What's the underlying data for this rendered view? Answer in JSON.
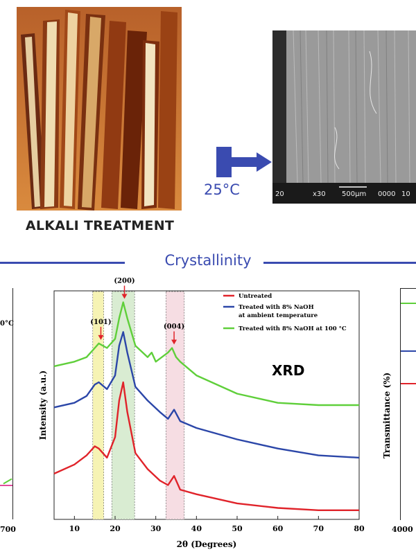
{
  "photo_caption": "ALKALI TREATMENT",
  "arrow_label": "25°C",
  "sem": {
    "scale_label": "500μm",
    "info_left": "20",
    "info_mag": "x30",
    "info_right": "0000",
    "info_far": "10"
  },
  "section_title": "Crystallinity",
  "left_panel": {
    "tick_label": "700",
    "partial_label": "0°C"
  },
  "right_panel": {
    "ylabel": "Transmittance (%)",
    "tick_label": "4000"
  },
  "colors": {
    "accent": "#3a4bb0",
    "untreated": "#e0232a",
    "ambient": "#2b46a8",
    "hot": "#5fcf3a"
  },
  "chart_data": {
    "type": "line",
    "title": "XRD",
    "xlabel": "2θ (Degrees)",
    "ylabel": "Intensity (a.u.)",
    "xlim": [
      5,
      80
    ],
    "x_ticks": [
      10,
      20,
      30,
      40,
      50,
      60,
      70,
      80
    ],
    "legend_position": "top-right",
    "peaks": [
      {
        "label": "(101)",
        "x": 16.5
      },
      {
        "label": "(200)",
        "x": 22.3
      },
      {
        "label": "(004)",
        "x": 34.5
      }
    ],
    "bands": [
      {
        "x0": 14.5,
        "x1": 17.2,
        "color": "#f6f3b4"
      },
      {
        "x0": 19.2,
        "x1": 24.8,
        "color": "#d9ecd2"
      },
      {
        "x0": 32.5,
        "x1": 37.0,
        "color": "#f6dde3"
      }
    ],
    "series": [
      {
        "name": "Untreated",
        "color": "#e0232a",
        "x": [
          5,
          10,
          13,
          15,
          16,
          18,
          20,
          21,
          22,
          23,
          25,
          28,
          31,
          33,
          34.5,
          36,
          40,
          50,
          60,
          70,
          80
        ],
        "y": [
          20,
          24,
          28,
          32,
          31,
          27,
          36,
          52,
          60,
          47,
          29,
          22,
          17,
          15,
          19,
          13,
          11,
          7,
          5,
          4,
          4
        ]
      },
      {
        "name": "Treated with 8% NaOH at ambient temperature",
        "color": "#2b46a8",
        "x": [
          5,
          10,
          13,
          15,
          16,
          18,
          20,
          21,
          22,
          23,
          25,
          28,
          31,
          33,
          34.5,
          36,
          40,
          50,
          60,
          70,
          80
        ],
        "y": [
          49,
          51,
          54,
          59,
          60,
          57,
          63,
          76,
          82,
          73,
          58,
          52,
          47,
          44,
          48,
          43,
          40,
          35,
          31,
          28,
          27
        ]
      },
      {
        "name": "Treated with 8% NaOH at 100 °C",
        "color": "#5fcf3a",
        "x": [
          5,
          10,
          13,
          15,
          16,
          18,
          20,
          21,
          22,
          23,
          25,
          28,
          29,
          30,
          33,
          34,
          35,
          36,
          40,
          50,
          60,
          70,
          80
        ],
        "y": [
          67,
          69,
          71,
          75,
          77,
          75,
          79,
          88,
          95,
          88,
          76,
          71,
          73,
          69,
          73,
          75,
          71,
          69,
          63,
          55,
          51,
          50,
          50
        ]
      }
    ]
  }
}
